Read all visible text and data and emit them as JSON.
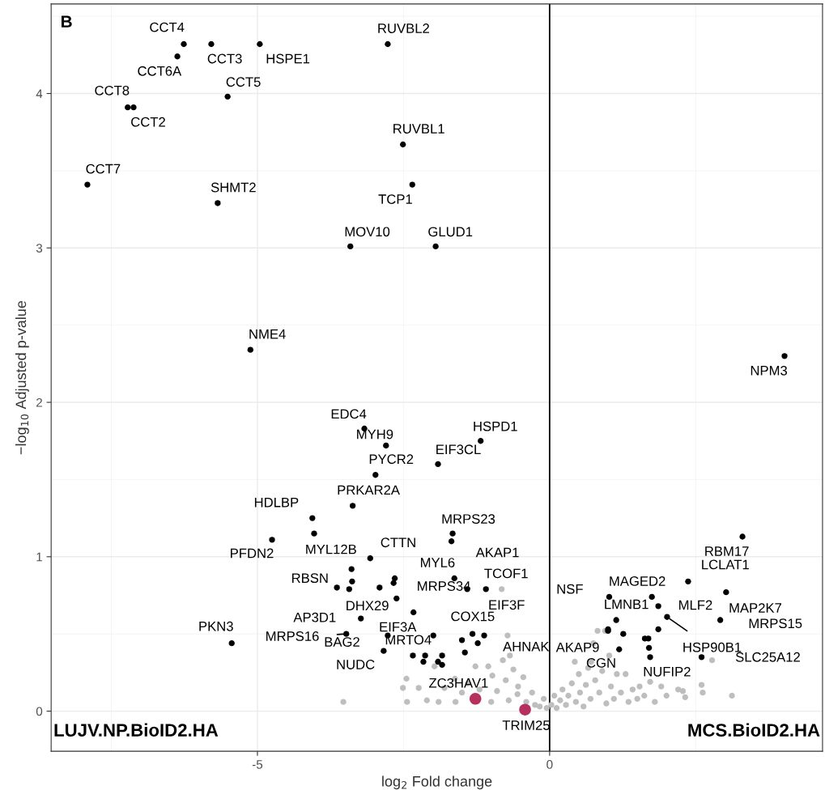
{
  "chart_data": {
    "type": "scatter",
    "xlabel": "log$_{2}$ Fold change",
    "ylabel": "−log$_{10}$ Adjusted p-value",
    "xlim": [
      -8.53,
      4.67
    ],
    "ylim": [
      -0.26,
      4.58
    ],
    "xticks": [
      -5,
      0
    ],
    "yticks": [
      0,
      1,
      2,
      3,
      4
    ],
    "grid": true,
    "legend": false,
    "ref_lines": [
      {
        "axis": "x",
        "value": 0,
        "color": "#000000"
      }
    ],
    "series": [
      {
        "color": "#bebebe",
        "x": [
          -3.53,
          -2.51,
          -2.45,
          -2.44,
          -2.24,
          -2.1,
          -1.97,
          -1.9,
          -1.8,
          -1.62,
          -1.61,
          -1.5,
          -1.4,
          -1.27,
          -1.2,
          -1.05,
          -1.0,
          -0.98,
          -0.9,
          -0.82,
          -0.8,
          -0.75,
          -0.72,
          -0.7,
          -0.68,
          -0.62,
          -0.55,
          -0.54,
          -0.45,
          -0.4,
          -0.3,
          -0.25,
          -0.17,
          -0.1,
          -0.05,
          0.03,
          0.08,
          0.12,
          0.18,
          0.22,
          0.28,
          0.32,
          0.38,
          0.43,
          0.45,
          0.5,
          0.52,
          0.58,
          0.62,
          0.66,
          0.7,
          0.71,
          0.75,
          0.78,
          0.82,
          0.85,
          0.9,
          0.95,
          0.97,
          1.02,
          1.05,
          1.1,
          1.15,
          1.22,
          1.3,
          1.35,
          1.42,
          1.5,
          1.54,
          1.62,
          1.72,
          1.8,
          1.91,
          2.0,
          2.2,
          2.28,
          2.32,
          2.6,
          2.62,
          2.78,
          3.12
        ],
        "values": [
          0.06,
          0.15,
          0.21,
          0.06,
          0.15,
          0.07,
          0.29,
          0.06,
          0.15,
          0.21,
          0.06,
          0.12,
          0.18,
          0.29,
          0.14,
          0.29,
          0.06,
          0.23,
          0.13,
          0.79,
          0.33,
          0.2,
          0.49,
          0.07,
          0.36,
          0.27,
          0.11,
          0.16,
          0.22,
          0.06,
          0.12,
          0.04,
          0.03,
          0.08,
          0.02,
          0.04,
          0.1,
          0.02,
          0.07,
          0.14,
          0.04,
          0.1,
          0.18,
          0.32,
          0.06,
          0.24,
          0.12,
          0.03,
          0.17,
          0.28,
          0.08,
          0.32,
          0.44,
          0.2,
          0.52,
          0.12,
          0.26,
          0.52,
          0.05,
          0.36,
          0.16,
          0.08,
          0.24,
          0.12,
          0.24,
          0.06,
          0.14,
          0.08,
          0.16,
          0.1,
          0.19,
          0.06,
          0.16,
          0.1,
          0.14,
          0.13,
          0.09,
          0.17,
          0.12,
          0.33,
          0.1
        ]
      },
      {
        "color": "#000000",
        "x": [
          -6.26,
          -6.37,
          -5.79,
          -4.96,
          -5.51,
          -7.22,
          -7.12,
          -7.91,
          -5.68,
          -2.77,
          -2.51,
          -2.35,
          -3.41,
          -1.95,
          -5.12,
          -3.17,
          -2.8,
          -1.18,
          -1.91,
          -2.98,
          -3.37,
          -4.06,
          -4.03,
          -4.75,
          -3.07,
          -3.39,
          -3.64,
          -2.62,
          -1.63,
          -1.66,
          -1.68,
          -1.09,
          -1.41,
          -3.23,
          -2.33,
          -3.48,
          -5.44,
          -1.99,
          -1.23,
          -2.84,
          -2.34,
          -2.13,
          4.02,
          3.3,
          2.37,
          1.75,
          1.02,
          3.02,
          1.86,
          1.14,
          2.01,
          2.92,
          1.0,
          1.19,
          1.72,
          2.6,
          -3.38,
          -3.43,
          -2.91,
          -2.65,
          -2.67,
          -2.77,
          -1.32,
          -1.12,
          -1.5,
          -1.45,
          -2.16,
          -1.84,
          -1.91,
          -1.84,
          1.86,
          1.0,
          1.26,
          1.63,
          1.69,
          1.7
        ],
        "values": [
          4.32,
          4.24,
          4.32,
          4.32,
          3.98,
          3.91,
          3.91,
          3.41,
          3.29,
          4.32,
          3.67,
          3.41,
          3.01,
          3.01,
          2.34,
          1.83,
          1.72,
          1.75,
          1.6,
          1.53,
          1.33,
          1.25,
          1.15,
          1.11,
          0.99,
          0.92,
          0.8,
          0.73,
          0.86,
          1.15,
          1.1,
          0.79,
          0.79,
          0.6,
          0.64,
          0.5,
          0.44,
          0.49,
          0.44,
          0.39,
          0.36,
          0.36,
          2.3,
          1.13,
          0.84,
          0.74,
          0.74,
          0.77,
          0.68,
          0.59,
          0.61,
          0.59,
          0.53,
          0.4,
          0.35,
          0.35,
          0.84,
          0.79,
          0.8,
          0.86,
          0.83,
          0.49,
          0.5,
          0.49,
          0.46,
          0.38,
          0.32,
          0.36,
          0.32,
          0.3,
          0.53,
          0.52,
          0.5,
          0.47,
          0.47,
          0.41
        ]
      },
      {
        "color": "#b5305f",
        "x": [
          -1.27,
          -0.42
        ],
        "values": [
          0.08,
          0.01
        ]
      }
    ],
    "annotations": [
      "B",
      "LUJV.NP.BioID2.HA",
      "MCS.BioID2.HA",
      {
        "text": "CCT4",
        "x": -6.26,
        "y": 4.32
      },
      {
        "text": "CCT6A",
        "x": -6.37,
        "y": 4.24
      },
      {
        "text": "CCT3",
        "x": -5.79,
        "y": 4.32
      },
      {
        "text": "HSPE1",
        "x": -4.96,
        "y": 4.32
      },
      {
        "text": "CCT5",
        "x": -5.51,
        "y": 3.98
      },
      {
        "text": "CCT8",
        "x": -7.22,
        "y": 3.91
      },
      {
        "text": "CCT2",
        "x": -7.12,
        "y": 3.91
      },
      {
        "text": "CCT7",
        "x": -7.91,
        "y": 3.41
      },
      {
        "text": "SHMT2",
        "x": -5.68,
        "y": 3.29
      },
      {
        "text": "RUVBL2",
        "x": -2.77,
        "y": 4.32
      },
      {
        "text": "RUVBL1",
        "x": -2.51,
        "y": 3.67
      },
      {
        "text": "TCP1",
        "x": -2.35,
        "y": 3.41
      },
      {
        "text": "MOV10",
        "x": -3.41,
        "y": 3.01
      },
      {
        "text": "GLUD1",
        "x": -1.95,
        "y": 3.01
      },
      {
        "text": "NME4",
        "x": -5.12,
        "y": 2.34
      },
      {
        "text": "EDC4",
        "x": -3.17,
        "y": 1.83
      },
      {
        "text": "MYH9",
        "x": -2.8,
        "y": 1.72
      },
      {
        "text": "HSPD1",
        "x": -1.18,
        "y": 1.75
      },
      {
        "text": "EIF3CL",
        "x": -1.91,
        "y": 1.6
      },
      {
        "text": "PYCR2",
        "x": -2.98,
        "y": 1.53
      },
      {
        "text": "PRKAR2A",
        "x": -3.37,
        "y": 1.33
      },
      {
        "text": "HDLBP",
        "x": -4.06,
        "y": 1.25
      },
      {
        "text": "MYL12B",
        "x": -4.03,
        "y": 1.15
      },
      {
        "text": "PFDN2",
        "x": -4.75,
        "y": 1.11
      },
      {
        "text": "CTTN",
        "x": -3.07,
        "y": 0.99
      },
      {
        "text": "RBSN",
        "x": -3.39,
        "y": 0.92
      },
      {
        "text": "DHX29",
        "x": -3.64,
        "y": 0.8
      },
      {
        "text": "MRPS34",
        "x": -2.62,
        "y": 0.73
      },
      {
        "text": "MYL6",
        "x": -1.63,
        "y": 0.86
      },
      {
        "text": "MRPS23",
        "x": -1.66,
        "y": 1.15
      },
      {
        "text": "AKAP1",
        "x": -1.68,
        "y": 1.1
      },
      {
        "text": "TCOF1",
        "x": -1.09,
        "y": 0.79
      },
      {
        "text": "EIF3F",
        "x": -1.41,
        "y": 0.79
      },
      {
        "text": "AP3D1",
        "x": -3.23,
        "y": 0.6
      },
      {
        "text": "EIF3A",
        "x": -2.33,
        "y": 0.64
      },
      {
        "text": "MRPS16",
        "x": -3.48,
        "y": 0.5
      },
      {
        "text": "PKN3",
        "x": -5.44,
        "y": 0.44
      },
      {
        "text": "COX15",
        "x": -1.99,
        "y": 0.49
      },
      {
        "text": "AHNAK",
        "x": -1.23,
        "y": 0.44
      },
      {
        "text": "BAG2",
        "x": -2.84,
        "y": 0.39
      },
      {
        "text": "NUDC",
        "x": -2.34,
        "y": 0.36
      },
      {
        "text": "MRTO4",
        "x": -2.13,
        "y": 0.36
      },
      {
        "text": "NPM3",
        "x": 4.02,
        "y": 2.3
      },
      {
        "text": "RBM17",
        "x": 3.3,
        "y": 1.13
      },
      {
        "text": "LCLAT1",
        "x": 2.37,
        "y": 0.84
      },
      {
        "text": "MAGED2",
        "x": 1.75,
        "y": 0.74
      },
      {
        "text": "NSF",
        "x": 1.02,
        "y": 0.74
      },
      {
        "text": "MAP2K7",
        "x": 3.02,
        "y": 0.77
      },
      {
        "text": "MLF2",
        "x": 1.86,
        "y": 0.68
      },
      {
        "text": "LMNB1",
        "x": 1.14,
        "y": 0.59
      },
      {
        "text": "HSP90B1",
        "x": 2.01,
        "y": 0.61
      },
      {
        "text": "MRPS15",
        "x": 2.92,
        "y": 0.59
      },
      {
        "text": "AKAP9",
        "x": 1.0,
        "y": 0.53
      },
      {
        "text": "CGN",
        "x": 1.19,
        "y": 0.4
      },
      {
        "text": "NUFIP2",
        "x": 1.72,
        "y": 0.35
      },
      {
        "text": "SLC25A12",
        "x": 2.6,
        "y": 0.35
      },
      {
        "text": "ZC3HAV1",
        "x": -1.27,
        "y": 0.08
      },
      {
        "text": "TRIM25",
        "x": -0.42,
        "y": 0.01
      }
    ]
  }
}
